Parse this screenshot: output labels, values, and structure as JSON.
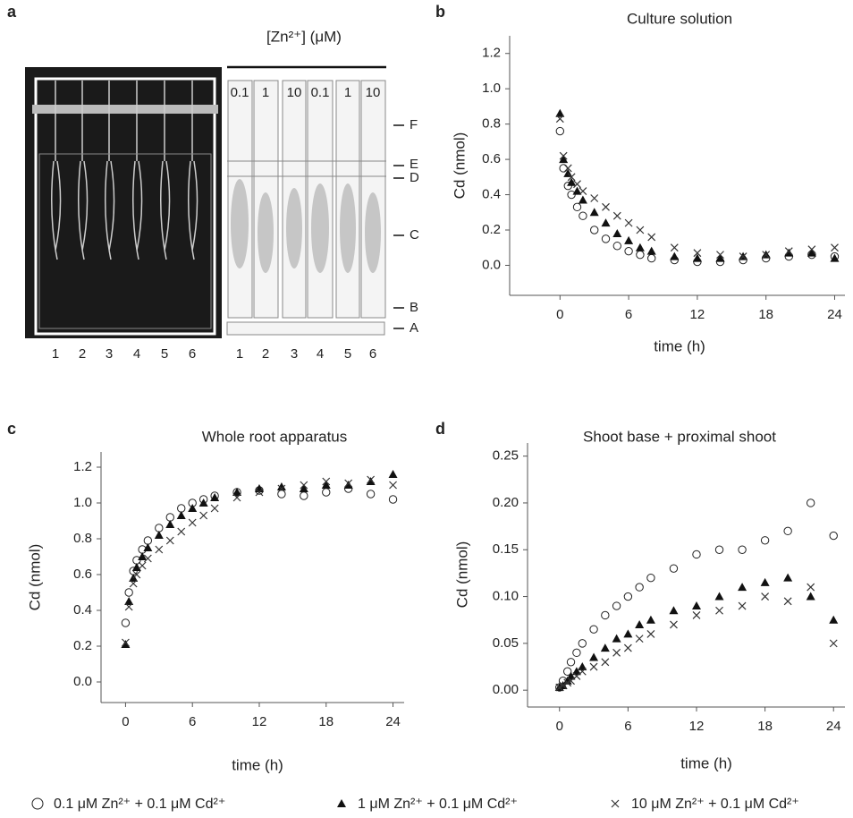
{
  "panel_a": {
    "letter": "a",
    "header": "[Zn²⁺] (μM)",
    "lane_labels_top": [
      "0.1",
      "1",
      "10",
      "0.1",
      "1",
      "10"
    ],
    "plant_labels": [
      "1",
      "2",
      "3",
      "4",
      "5",
      "6"
    ],
    "lane_labels_bottom": [
      "1",
      "2",
      "3",
      "4",
      "5",
      "6"
    ],
    "zones": [
      "F",
      "E",
      "D",
      "C",
      "B",
      "A"
    ]
  },
  "chart_data": [
    {
      "type": "scatter",
      "panel": "b",
      "title": "Culture solution",
      "x_label": "time (h)",
      "y_label": "Cd (nmol)",
      "xlim": [
        -4.4,
        24.9
      ],
      "xticks": [
        0,
        6,
        12,
        18,
        24
      ],
      "ylim": [
        -0.17,
        1.3
      ],
      "yticks": [
        {
          "value": 0,
          "label": "0.0"
        },
        {
          "value": 0.2,
          "label": "0.2"
        },
        {
          "value": 0.4,
          "label": "0.4"
        },
        {
          "value": 0.6,
          "label": "0.6"
        },
        {
          "value": 0.8,
          "label": "0.8"
        },
        {
          "value": 1,
          "label": "1.0"
        },
        {
          "value": 1.2,
          "label": "1.2"
        }
      ],
      "x": [
        0,
        0.3,
        0.7,
        1,
        1.5,
        2,
        3,
        4,
        5,
        6,
        7,
        8,
        10,
        12,
        14,
        16,
        18,
        20,
        22,
        24
      ],
      "series": [
        {
          "name": "0.1 μM Zn²⁺ + 0.1 μM Cd²⁺",
          "marker": "circle",
          "color": "#222222",
          "values": [
            0.76,
            0.55,
            0.45,
            0.4,
            0.33,
            0.28,
            0.2,
            0.15,
            0.11,
            0.08,
            0.06,
            0.04,
            0.03,
            0.02,
            0.02,
            0.03,
            0.04,
            0.05,
            0.06,
            0.05
          ]
        },
        {
          "name": "1 μM Zn²⁺ + 0.1 μM Cd²⁺",
          "marker": "triangle",
          "color": "#111111",
          "values": [
            0.86,
            0.6,
            0.52,
            0.47,
            0.42,
            0.37,
            0.3,
            0.24,
            0.18,
            0.14,
            0.1,
            0.08,
            0.05,
            0.04,
            0.04,
            0.05,
            0.06,
            0.07,
            0.07,
            0.04
          ]
        },
        {
          "name": "10 μM Zn²⁺ + 0.1 μM Cd²⁺",
          "marker": "cross",
          "color": "#333333",
          "values": [
            0.83,
            0.62,
            0.55,
            0.5,
            0.46,
            0.42,
            0.38,
            0.33,
            0.28,
            0.24,
            0.2,
            0.16,
            0.1,
            0.07,
            0.06,
            0.05,
            0.06,
            0.08,
            0.09,
            0.1
          ]
        }
      ]
    },
    {
      "type": "scatter",
      "panel": "c",
      "title": "Whole root apparatus",
      "x_label": "time (h)",
      "y_label": "Cd (nmol)",
      "xlim": [
        -2.2,
        25
      ],
      "xticks": [
        0,
        6,
        12,
        18,
        24
      ],
      "ylim": [
        -0.115,
        1.285
      ],
      "yticks": [
        {
          "value": 0,
          "label": "0.0"
        },
        {
          "value": 0.2,
          "label": "0.2"
        },
        {
          "value": 0.4,
          "label": "0.4"
        },
        {
          "value": 0.6,
          "label": "0.6"
        },
        {
          "value": 0.8,
          "label": "0.8"
        },
        {
          "value": 1,
          "label": "1.0"
        },
        {
          "value": 1.2,
          "label": "1.2"
        }
      ],
      "x": [
        0,
        0.3,
        0.7,
        1,
        1.5,
        2,
        3,
        4,
        5,
        6,
        7,
        8,
        10,
        12,
        14,
        16,
        18,
        20,
        22,
        24
      ],
      "series": [
        {
          "name": "0.1 μM Zn²⁺ + 0.1 μM Cd²⁺",
          "marker": "circle",
          "color": "#222222",
          "values": [
            0.33,
            0.5,
            0.62,
            0.68,
            0.74,
            0.79,
            0.86,
            0.92,
            0.97,
            1.0,
            1.02,
            1.04,
            1.06,
            1.07,
            1.05,
            1.04,
            1.06,
            1.08,
            1.05,
            1.02
          ]
        },
        {
          "name": "1 μM Zn²⁺ + 0.1 μM Cd²⁺",
          "marker": "triangle",
          "color": "#111111",
          "values": [
            0.21,
            0.45,
            0.58,
            0.64,
            0.7,
            0.75,
            0.82,
            0.88,
            0.93,
            0.97,
            1.0,
            1.03,
            1.06,
            1.08,
            1.09,
            1.08,
            1.1,
            1.1,
            1.12,
            1.16
          ]
        },
        {
          "name": "10 μM Zn²⁺ + 0.1 μM Cd²⁺",
          "marker": "cross",
          "color": "#333333",
          "values": [
            0.22,
            0.42,
            0.55,
            0.6,
            0.65,
            0.69,
            0.74,
            0.79,
            0.84,
            0.89,
            0.93,
            0.97,
            1.03,
            1.06,
            1.08,
            1.1,
            1.12,
            1.11,
            1.13,
            1.1
          ]
        }
      ]
    },
    {
      "type": "scatter",
      "panel": "d",
      "title": "Shoot base + proximal shoot",
      "x_label": "time (h)",
      "y_label": "Cd (nmol)",
      "xlim": [
        -2.8,
        25
      ],
      "xticks": [
        0,
        6,
        12,
        18,
        24
      ],
      "ylim": [
        -0.018,
        0.264
      ],
      "yticks": [
        {
          "value": 0,
          "label": "0.00"
        },
        {
          "value": 0.05,
          "label": "0.05"
        },
        {
          "value": 0.1,
          "label": "0.10"
        },
        {
          "value": 0.15,
          "label": "0.15"
        },
        {
          "value": 0.2,
          "label": "0.20"
        },
        {
          "value": 0.25,
          "label": "0.25"
        }
      ],
      "x": [
        0,
        0.3,
        0.7,
        1,
        1.5,
        2,
        3,
        4,
        5,
        6,
        7,
        8,
        10,
        12,
        14,
        16,
        18,
        20,
        22,
        24
      ],
      "series": [
        {
          "name": "0.1 μM Zn²⁺ + 0.1 μM Cd²⁺",
          "marker": "circle",
          "color": "#222222",
          "values": [
            0.003,
            0.01,
            0.02,
            0.03,
            0.04,
            0.05,
            0.065,
            0.08,
            0.09,
            0.1,
            0.11,
            0.12,
            0.13,
            0.145,
            0.15,
            0.15,
            0.16,
            0.17,
            0.2,
            0.165
          ]
        },
        {
          "name": "1 μM Zn²⁺ + 0.1 μM Cd²⁺",
          "marker": "triangle",
          "color": "#111111",
          "values": [
            0.003,
            0.005,
            0.01,
            0.015,
            0.02,
            0.025,
            0.035,
            0.045,
            0.055,
            0.06,
            0.07,
            0.075,
            0.085,
            0.09,
            0.1,
            0.11,
            0.115,
            0.12,
            0.1,
            0.075
          ]
        },
        {
          "name": "10 μM Zn²⁺ + 0.1 μM Cd²⁺",
          "marker": "cross",
          "color": "#333333",
          "values": [
            0.003,
            0.005,
            0.008,
            0.01,
            0.015,
            0.02,
            0.025,
            0.03,
            0.04,
            0.045,
            0.055,
            0.06,
            0.07,
            0.08,
            0.085,
            0.09,
            0.1,
            0.095,
            0.11,
            0.05
          ]
        }
      ]
    }
  ]
}
